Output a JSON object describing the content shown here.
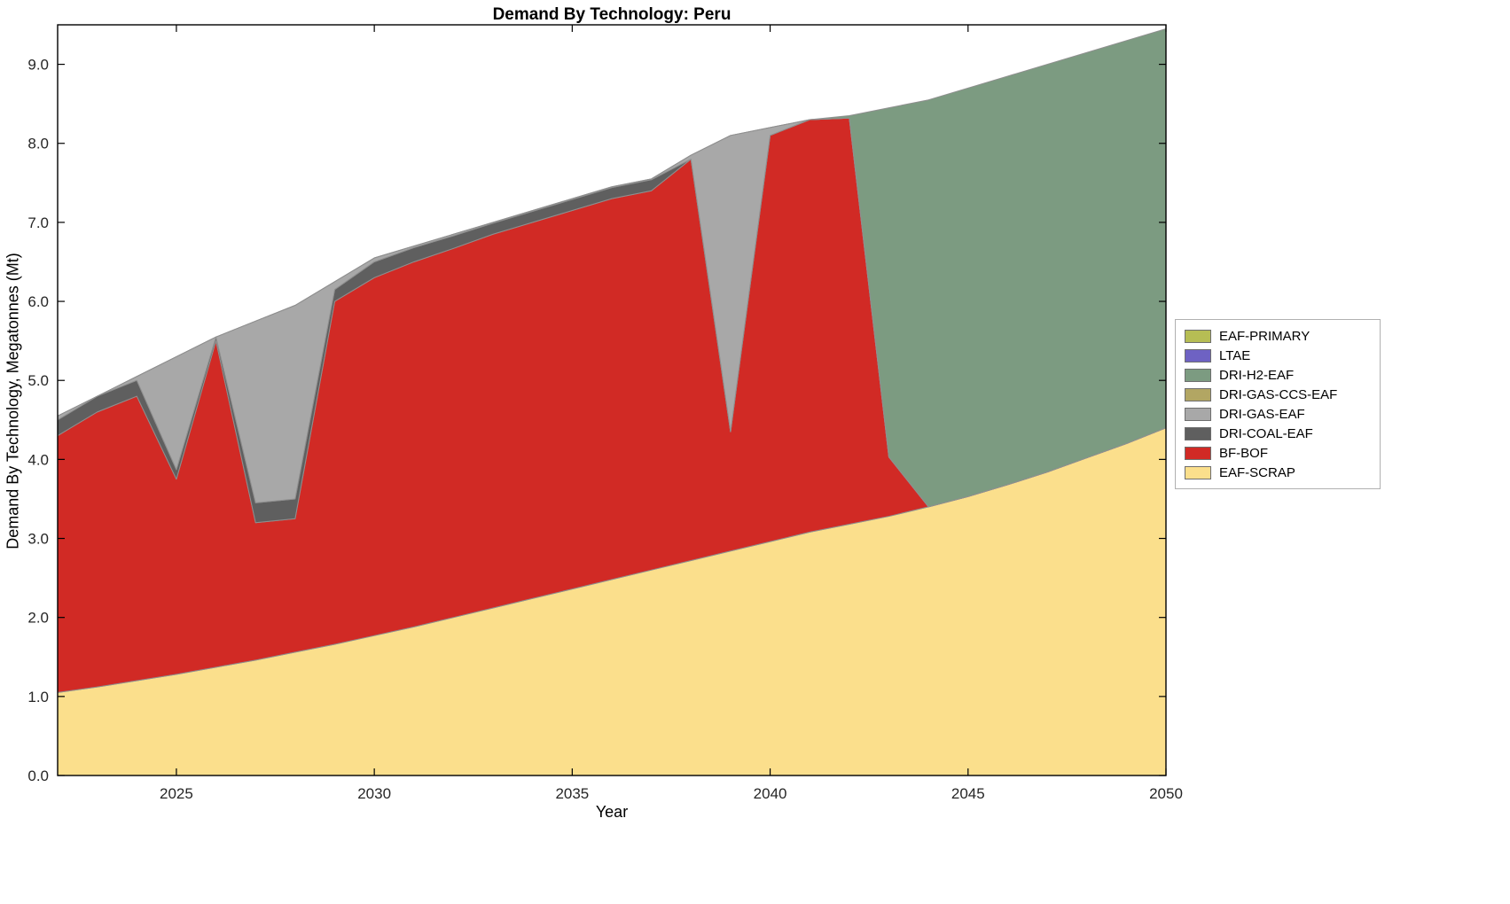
{
  "figure": {
    "background": "#ffffff"
  },
  "chart_data": {
    "type": "area",
    "stacked": true,
    "title": "Demand By Technology: Peru",
    "xlabel": "Year",
    "ylabel": "Demand By Technology, Megatonnes (Mt)",
    "x_range": [
      2022,
      2050
    ],
    "y_range": [
      0,
      9.5
    ],
    "x_ticks": [
      2025,
      2030,
      2035,
      2040,
      2045,
      2050
    ],
    "x_tick_labels": [
      "2025",
      "2030",
      "2035",
      "2040",
      "2045",
      "2050"
    ],
    "y_ticks": [
      0,
      1,
      2,
      3,
      4,
      5,
      6,
      7,
      8,
      9
    ],
    "y_tick_labels": [
      "0.0",
      "1.0",
      "2.0",
      "3.0",
      "4.0",
      "5.0",
      "6.0",
      "7.0",
      "8.0",
      "9.0"
    ],
    "grid": false,
    "legend_position": "right-outside",
    "edge_color": "#8f8f8f",
    "axis_color": "#000000",
    "years": [
      2022,
      2023,
      2024,
      2025,
      2026,
      2027,
      2028,
      2029,
      2030,
      2031,
      2032,
      2033,
      2034,
      2035,
      2036,
      2037,
      2038,
      2039,
      2040,
      2041,
      2042,
      2043,
      2044,
      2045,
      2046,
      2047,
      2048,
      2049,
      2050
    ],
    "series": [
      {
        "name": "EAF-SCRAP",
        "color": "#fbdf8c",
        "values": [
          1.05,
          1.12,
          1.2,
          1.28,
          1.37,
          1.46,
          1.56,
          1.66,
          1.77,
          1.88,
          2.0,
          2.12,
          2.24,
          2.36,
          2.48,
          2.6,
          2.72,
          2.84,
          2.96,
          3.08,
          3.18,
          3.28,
          3.4,
          3.53,
          3.68,
          3.84,
          4.02,
          4.2,
          4.4
        ]
      },
      {
        "name": "BF-BOF",
        "color": "#d12a25",
        "values": [
          3.25,
          3.48,
          3.6,
          2.47,
          4.13,
          1.74,
          1.69,
          4.34,
          4.53,
          4.62,
          4.67,
          4.73,
          4.76,
          4.79,
          4.82,
          4.8,
          5.08,
          1.51,
          5.14,
          5.22,
          5.14,
          0.75,
          0,
          0,
          0,
          0,
          0,
          0,
          0
        ]
      },
      {
        "name": "DRI-COAL-EAF",
        "color": "#5f5f5f",
        "values": [
          0.2,
          0.2,
          0.2,
          0.12,
          0.05,
          0.25,
          0.25,
          0.15,
          0.2,
          0.18,
          0.16,
          0.14,
          0.14,
          0.14,
          0.14,
          0.14,
          0,
          0,
          0,
          0,
          0,
          0,
          0,
          0,
          0,
          0,
          0,
          0,
          0
        ]
      },
      {
        "name": "DRI-GAS-EAF",
        "color": "#a8a8a8",
        "values": [
          0.05,
          0.0,
          0.05,
          1.43,
          0.0,
          2.3,
          2.45,
          0.1,
          0.05,
          0.02,
          0.02,
          0.01,
          0.01,
          0.01,
          0.01,
          0.01,
          0.05,
          3.75,
          0.1,
          0.0,
          0.0,
          0,
          0,
          0,
          0,
          0,
          0,
          0,
          0
        ]
      },
      {
        "name": "DRI-GAS-CCS-EAF",
        "color": "#b2a663",
        "values": [
          0,
          0,
          0,
          0,
          0,
          0,
          0,
          0,
          0,
          0,
          0,
          0,
          0,
          0,
          0,
          0,
          0,
          0,
          0,
          0,
          0,
          0,
          0,
          0,
          0,
          0,
          0,
          0,
          0
        ]
      },
      {
        "name": "DRI-H2-EAF",
        "color": "#7c9b81",
        "values": [
          0,
          0,
          0,
          0,
          0,
          0,
          0,
          0,
          0,
          0,
          0,
          0,
          0,
          0,
          0,
          0,
          0,
          0,
          0,
          0,
          0.03,
          4.42,
          5.15,
          5.17,
          5.17,
          5.16,
          5.13,
          5.1,
          5.05
        ]
      },
      {
        "name": "LTAE",
        "color": "#6e62c3",
        "values": [
          0,
          0,
          0,
          0,
          0,
          0,
          0,
          0,
          0,
          0,
          0,
          0,
          0,
          0,
          0,
          0,
          0,
          0,
          0,
          0,
          0,
          0,
          0,
          0,
          0,
          0,
          0,
          0,
          0
        ]
      },
      {
        "name": "EAF-PRIMARY",
        "color": "#b6bd54",
        "values": [
          0,
          0,
          0,
          0,
          0,
          0,
          0,
          0,
          0,
          0,
          0,
          0,
          0,
          0,
          0,
          0,
          0,
          0,
          0,
          0,
          0,
          0,
          0,
          0,
          0,
          0,
          0,
          0,
          0
        ]
      }
    ],
    "legend_order_top_to_bottom": [
      "EAF-PRIMARY",
      "LTAE",
      "DRI-H2-EAF",
      "DRI-GAS-CCS-EAF",
      "DRI-GAS-EAF",
      "DRI-COAL-EAF",
      "BF-BOF",
      "EAF-SCRAP"
    ]
  }
}
